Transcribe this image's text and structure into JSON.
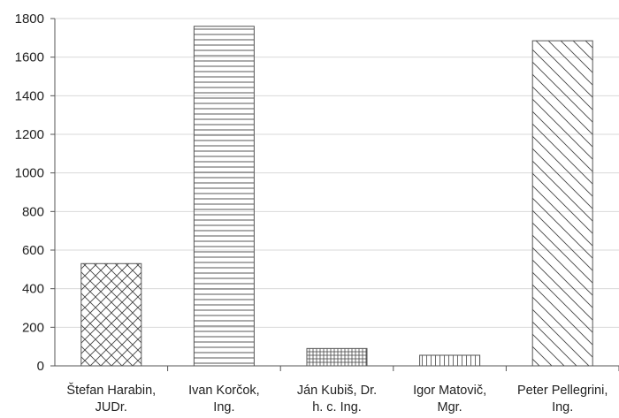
{
  "chart_data": {
    "type": "bar",
    "title": "",
    "xlabel": "",
    "ylabel": "",
    "ylim": [
      0,
      1800
    ],
    "yticks": [
      0,
      200,
      400,
      600,
      800,
      1000,
      1200,
      1400,
      1600,
      1800
    ],
    "grid": true,
    "legend": "none",
    "categories": [
      "Štefan Harabin, JUDr.",
      "Ivan Korčok, Ing.",
      "Ján Kubiš, Dr. h. c. Ing.",
      "Igor Matovič, Mgr.",
      "Peter Pellegrini, Ing."
    ],
    "category_lines": [
      [
        "Štefan Harabin,",
        "JUDr."
      ],
      [
        "Ivan Korčok,",
        "Ing."
      ],
      [
        "Ján Kubiš, Dr.",
        "h. c. Ing."
      ],
      [
        "Igor Matovič,",
        "Mgr."
      ],
      [
        "Peter Pellegrini,",
        "Ing."
      ]
    ],
    "values": [
      530,
      1760,
      90,
      55,
      1685
    ],
    "bar_patterns": [
      "crosshatch-diagonal",
      "horizontal-lines",
      "grid-small",
      "vertical-lines",
      "diagonal-lines"
    ],
    "colors": {
      "grid": "#d9d9d9",
      "axis": "#555555",
      "bar_stroke": "#555555",
      "pattern": "#444444",
      "text": "#222222"
    }
  }
}
